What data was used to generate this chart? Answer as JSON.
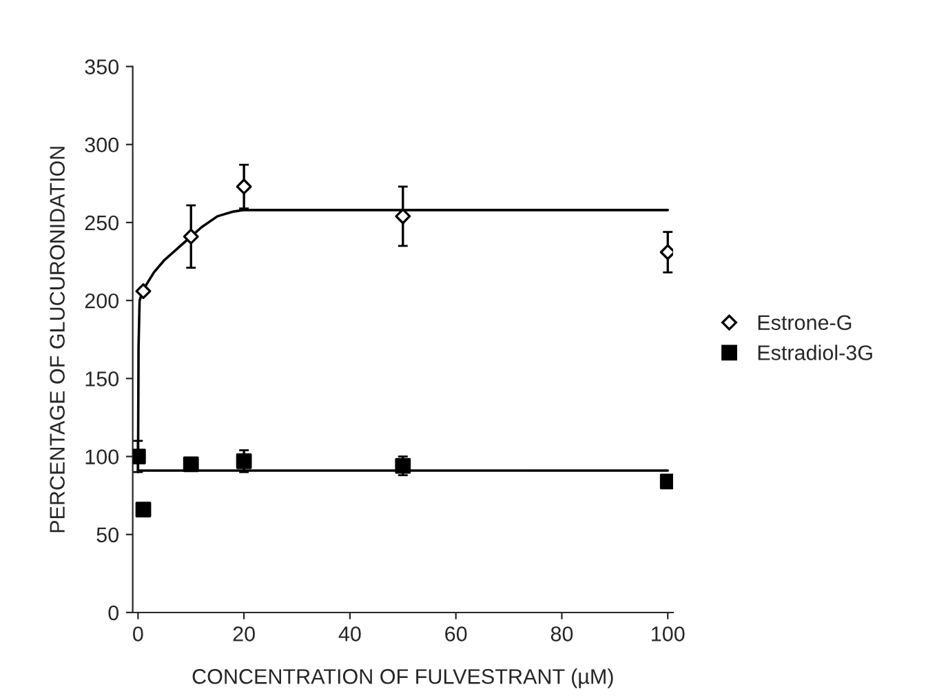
{
  "chart_data": {
    "type": "scatter",
    "xlabel": "CONCENTRATION OF FULVESTRANT (µM)",
    "ylabel": "PERCENTAGE OF GLUCURONIDATION",
    "xlim": [
      -1,
      101
    ],
    "ylim": [
      0,
      350
    ],
    "xticks": [
      0,
      20,
      40,
      60,
      80,
      100
    ],
    "yticks": [
      0,
      50,
      100,
      150,
      200,
      250,
      300,
      350
    ],
    "grid": false,
    "legend": "right",
    "series": [
      {
        "name": "Estrone-G",
        "marker": "diamond",
        "color": "#000000",
        "x": [
          1,
          10,
          20,
          50,
          100
        ],
        "values": [
          206,
          241,
          273,
          254,
          231
        ],
        "errors": [
          null,
          20,
          14,
          19,
          13
        ]
      },
      {
        "name": "Estradiol-3G",
        "marker": "square",
        "color": "#000000",
        "x": [
          0,
          1,
          10,
          20,
          50,
          100
        ],
        "values": [
          100,
          66,
          95,
          97,
          94,
          84
        ],
        "errors": [
          10,
          null,
          null,
          7,
          6,
          null
        ]
      },
      {
        "type": "line",
        "color": "#000000",
        "x": [
          0,
          0.1,
          0.3,
          1,
          3,
          5,
          8,
          10,
          12,
          15,
          18,
          20,
          30,
          50,
          100
        ],
        "values": [
          90,
          170,
          200,
          207,
          218,
          226,
          235,
          241,
          247,
          254,
          257,
          258,
          258,
          258,
          258
        ]
      },
      {
        "type": "line",
        "color": "#000000",
        "x": [
          0,
          100
        ],
        "values": [
          91,
          91
        ]
      }
    ]
  }
}
